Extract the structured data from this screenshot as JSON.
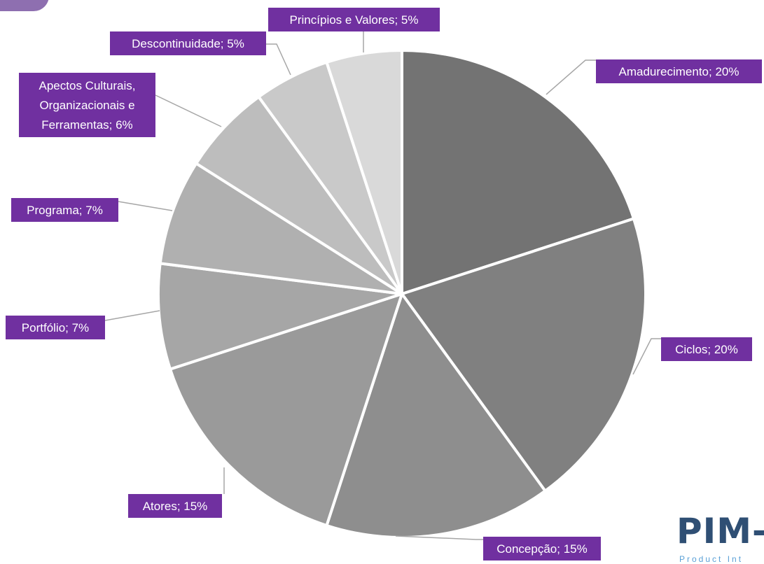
{
  "chart_data": {
    "type": "pie",
    "title": "",
    "slices": [
      {
        "label": "Amadurecimento; 20%",
        "value": 20,
        "color": "#737373"
      },
      {
        "label": "Ciclos; 20%",
        "value": 20,
        "color": "#808080"
      },
      {
        "label": "Concepção; 15%",
        "value": 15,
        "color": "#8e8e8e"
      },
      {
        "label": "Atores; 15%",
        "value": 15,
        "color": "#9a9a9a"
      },
      {
        "label": "Portfólio; 7%",
        "value": 7,
        "color": "#a6a6a6"
      },
      {
        "label": "Programa; 7%",
        "value": 7,
        "color": "#b0b0b0"
      },
      {
        "label": "Apectos Culturais, Organizacionais e Ferramentas; 6%",
        "value": 6,
        "color": "#bdbdbd"
      },
      {
        "label": "Descontinuidade; 5%",
        "value": 5,
        "color": "#c9c9c9"
      },
      {
        "label": "Princípios e Valores; 5%",
        "value": 5,
        "color": "#d9d9d9"
      }
    ],
    "label_bg_color": "#7030a0",
    "slice_border_color": "#ffffff",
    "leader_line_color": "#a6a6a6"
  },
  "logo": {
    "text": "PIM-",
    "subtext": "Product Int"
  }
}
